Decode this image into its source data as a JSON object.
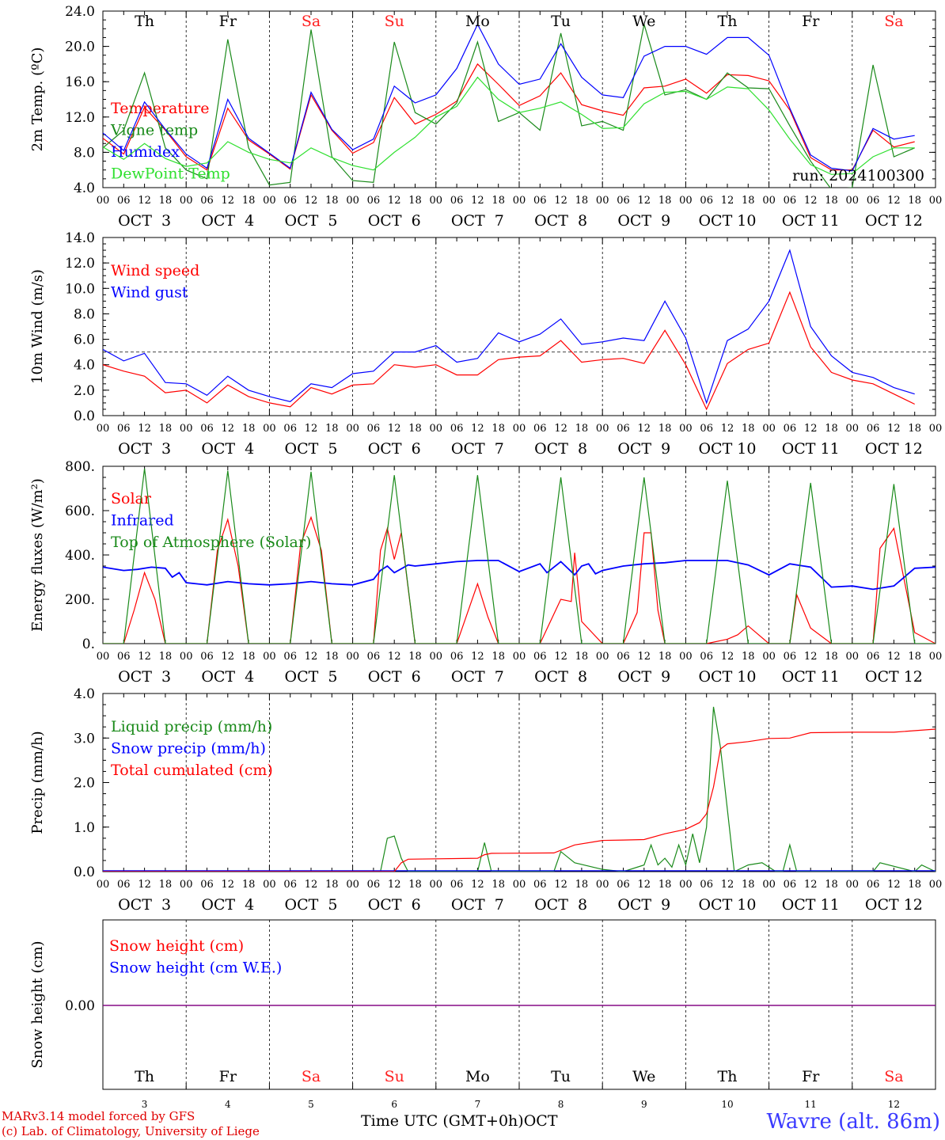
{
  "days": [
    "Th",
    "Fr",
    "Sa",
    "Su",
    "Mo",
    "Tu",
    "We",
    "Th",
    "Fr",
    "Sa"
  ],
  "weekend_days": [
    "Sa",
    "Su"
  ],
  "dates": [
    "OCT  3",
    "OCT  4",
    "OCT  5",
    "OCT  6",
    "OCT  7",
    "OCT  8",
    "OCT  9",
    "OCT 10",
    "OCT 11",
    "OCT 12"
  ],
  "hour_ticks": [
    "00",
    "06",
    "12",
    "18"
  ],
  "bottom_day_numbers": [
    "3",
    "4",
    "5",
    "6",
    "7",
    "8",
    "9",
    "10",
    "11",
    "12"
  ],
  "time_axis_label": "Time UTC (GMT+0h)",
  "month_label": "OCT",
  "credits": [
    "MARv3.14 model forced by GFS",
    "(c) Lab. of Climatology, University of Liege"
  ],
  "station": "Wavre (alt. 86m)",
  "run_label": "run: 2024100300",
  "colors": {
    "red": "#ff0000",
    "green": "#1a8a1a",
    "blue": "#0000ff",
    "lightgreen": "#30e030",
    "weekend": "#ff2020",
    "purple": "#800080"
  },
  "chart_data": [
    {
      "type": "line",
      "ylabel": "2m Temp. (ºC)",
      "ylim": [
        4,
        24
      ],
      "yticks": [
        "4.0",
        "8.0",
        "12.0",
        "16.0",
        "20.0",
        "24.0"
      ],
      "x_unit": "hours since OCT 3 00 UTC",
      "series": [
        {
          "name": "Temperature",
          "color": "red",
          "x": [
            0,
            6,
            12,
            18,
            24,
            30,
            36,
            42,
            48,
            54,
            60,
            66,
            72,
            78,
            84,
            90,
            96,
            102,
            108,
            114,
            120,
            126,
            132,
            138,
            144,
            150,
            156,
            162,
            168,
            174,
            180,
            186,
            192,
            198,
            204,
            210,
            216,
            222,
            228,
            234
          ],
          "y": [
            9.6,
            7.8,
            13.1,
            10.5,
            7.5,
            6.0,
            13.0,
            9.4,
            7.8,
            6.1,
            14.5,
            10.5,
            7.9,
            9.1,
            14.2,
            11.2,
            12.3,
            13.8,
            18.0,
            15.7,
            13.3,
            14.4,
            17.0,
            13.4,
            12.7,
            12.2,
            15.3,
            15.5,
            16.3,
            14.7,
            16.8,
            16.7,
            16.1,
            12.8,
            7.4,
            6.0,
            6.0,
            10.5,
            8.6,
            9.2
          ]
        },
        {
          "name": "Vigne temp",
          "color": "green",
          "x": [
            0,
            6,
            12,
            18,
            24,
            30,
            36,
            42,
            48,
            54,
            60,
            66,
            72,
            78,
            84,
            90,
            96,
            102,
            108,
            114,
            120,
            126,
            132,
            138,
            144,
            150,
            156,
            162,
            168,
            174,
            180,
            186,
            192,
            198,
            204,
            210,
            216,
            222,
            228,
            234
          ],
          "y": [
            8.5,
            10.5,
            17.0,
            8.5,
            6.0,
            5.0,
            20.8,
            8.5,
            4.3,
            4.6,
            21.9,
            7.5,
            4.8,
            4.6,
            20.5,
            12.5,
            11.2,
            13.6,
            20.5,
            11.5,
            12.5,
            10.5,
            21.5,
            11.0,
            11.5,
            10.5,
            22.5,
            14.5,
            15.1,
            14.0,
            17.0,
            15.3,
            15.2,
            11.0,
            7.0,
            3.8,
            4.0,
            17.9,
            7.5,
            8.5
          ]
        },
        {
          "name": "Humidex",
          "color": "blue",
          "x": [
            0,
            6,
            12,
            18,
            24,
            30,
            36,
            42,
            48,
            54,
            60,
            66,
            72,
            78,
            84,
            90,
            96,
            102,
            108,
            114,
            120,
            126,
            132,
            138,
            144,
            150,
            156,
            162,
            168,
            174,
            180,
            186,
            192,
            198,
            204,
            210,
            216,
            222,
            228,
            234
          ],
          "y": [
            10.2,
            8.2,
            13.7,
            10.6,
            7.8,
            6.2,
            14.0,
            9.6,
            7.9,
            6.2,
            14.8,
            10.6,
            8.3,
            9.5,
            15.5,
            13.6,
            14.5,
            17.5,
            22.5,
            18.0,
            15.7,
            16.3,
            20.3,
            16.5,
            14.5,
            14.2,
            18.9,
            20.0,
            20.0,
            19.1,
            21.0,
            21.0,
            19.0,
            13.0,
            7.7,
            6.2,
            5.9,
            10.7,
            9.5,
            9.9
          ]
        },
        {
          "name": "DewPoint Temp",
          "color": "lightgreen",
          "x": [
            0,
            6,
            12,
            18,
            24,
            30,
            36,
            42,
            48,
            54,
            60,
            66,
            72,
            78,
            84,
            90,
            96,
            102,
            108,
            114,
            120,
            126,
            132,
            138,
            144,
            150,
            156,
            162,
            168,
            174,
            180,
            186,
            192,
            198,
            204,
            210,
            216,
            222,
            228,
            234
          ],
          "y": [
            8.6,
            7.2,
            9.0,
            7.3,
            6.4,
            6.8,
            9.2,
            8.0,
            7.2,
            6.8,
            8.5,
            7.4,
            6.5,
            6.0,
            8.0,
            9.7,
            12.0,
            13.2,
            16.5,
            14.0,
            12.5,
            13.0,
            13.7,
            12.3,
            10.7,
            10.8,
            13.5,
            14.8,
            14.9,
            14.0,
            15.4,
            15.2,
            12.8,
            9.5,
            6.6,
            5.5,
            5.6,
            7.5,
            8.5,
            8.5
          ]
        }
      ]
    },
    {
      "type": "line",
      "ylabel": "10m Wind (m/s)",
      "ylim": [
        0,
        14
      ],
      "yticks": [
        "0.0",
        "2.0",
        "4.0",
        "6.0",
        "8.0",
        "10.0",
        "12.0",
        "14.0"
      ],
      "reference_line": 5.0,
      "series": [
        {
          "name": "Wind speed",
          "color": "red",
          "x": [
            0,
            6,
            12,
            18,
            24,
            30,
            36,
            42,
            48,
            54,
            60,
            66,
            72,
            78,
            84,
            90,
            96,
            102,
            108,
            114,
            120,
            126,
            132,
            138,
            144,
            150,
            156,
            162,
            168,
            174,
            180,
            186,
            192,
            198,
            204,
            210,
            216,
            222,
            228,
            234
          ],
          "y": [
            4.0,
            3.5,
            3.1,
            1.8,
            2.0,
            1.0,
            2.4,
            1.5,
            1.0,
            0.7,
            2.2,
            1.7,
            2.4,
            2.5,
            4.0,
            3.8,
            4.0,
            3.2,
            3.2,
            4.4,
            4.6,
            4.7,
            5.9,
            4.2,
            4.4,
            4.5,
            4.1,
            6.7,
            4.0,
            0.5,
            4.1,
            5.2,
            5.7,
            9.7,
            5.4,
            3.4,
            2.8,
            2.5,
            1.7,
            0.9
          ]
        },
        {
          "name": "Wind gust",
          "color": "blue",
          "x": [
            0,
            6,
            12,
            18,
            24,
            30,
            36,
            42,
            48,
            54,
            60,
            66,
            72,
            78,
            84,
            90,
            96,
            102,
            108,
            114,
            120,
            126,
            132,
            138,
            144,
            150,
            156,
            162,
            168,
            174,
            180,
            186,
            192,
            198,
            204,
            210,
            216,
            222,
            228,
            234
          ],
          "y": [
            5.2,
            4.3,
            4.9,
            2.6,
            2.5,
            1.6,
            3.1,
            2.0,
            1.5,
            1.1,
            2.5,
            2.2,
            3.3,
            3.5,
            5.0,
            5.0,
            5.5,
            4.2,
            4.5,
            6.5,
            5.8,
            6.4,
            7.6,
            5.6,
            5.8,
            6.1,
            5.9,
            9.0,
            6.1,
            1.0,
            5.9,
            6.8,
            9.0,
            13.0,
            7.0,
            4.7,
            3.4,
            3.0,
            2.2,
            1.7
          ]
        }
      ]
    },
    {
      "type": "line",
      "ylabel": "Energy fluxes (W/m²)",
      "ylim": [
        0,
        800
      ],
      "yticks": [
        "0.",
        "200.",
        "400.",
        "600.",
        "800."
      ],
      "series": [
        {
          "name": "Solar",
          "color": "red",
          "x": [
            0,
            6,
            9,
            12,
            15,
            18,
            24,
            30,
            33,
            36,
            39,
            42,
            48,
            54,
            57,
            60,
            63,
            66,
            72,
            78,
            80,
            82,
            84,
            86,
            88,
            90,
            96,
            102,
            104,
            108,
            111,
            114,
            120,
            126,
            132,
            135,
            136,
            138,
            144,
            150,
            154,
            156,
            158,
            160,
            162,
            168,
            174,
            180,
            183,
            186,
            192,
            198,
            200,
            204,
            210,
            216,
            222,
            224,
            228,
            234,
            240
          ],
          "y": [
            0,
            0,
            150,
            320,
            200,
            0,
            0,
            0,
            420,
            560,
            350,
            0,
            0,
            0,
            450,
            570,
            420,
            0,
            0,
            0,
            420,
            520,
            380,
            500,
            250,
            0,
            0,
            0,
            90,
            270,
            120,
            0,
            0,
            0,
            200,
            190,
            410,
            100,
            0,
            0,
            140,
            500,
            500,
            150,
            0,
            0,
            0,
            20,
            40,
            80,
            0,
            0,
            220,
            70,
            0,
            0,
            0,
            430,
            520,
            50,
            0
          ]
        },
        {
          "name": "Infrared",
          "color": "blue",
          "x": [
            0,
            6,
            10,
            14,
            18,
            20,
            22,
            24,
            30,
            36,
            42,
            48,
            54,
            60,
            66,
            72,
            78,
            80,
            82,
            84,
            88,
            90,
            96,
            102,
            108,
            114,
            120,
            126,
            128,
            132,
            136,
            138,
            140,
            142,
            144,
            150,
            156,
            162,
            168,
            174,
            180,
            186,
            192,
            198,
            204,
            210,
            216,
            222,
            228,
            234,
            240
          ],
          "y": [
            345,
            330,
            335,
            345,
            340,
            300,
            320,
            275,
            265,
            280,
            270,
            265,
            270,
            280,
            270,
            265,
            290,
            330,
            350,
            320,
            355,
            350,
            360,
            370,
            375,
            375,
            325,
            360,
            320,
            370,
            310,
            350,
            360,
            315,
            330,
            350,
            360,
            365,
            375,
            375,
            375,
            355,
            310,
            360,
            345,
            255,
            260,
            245,
            260,
            340,
            345
          ]
        },
        {
          "name": "Top of Atmosphere (Solar)",
          "color": "green",
          "x": [
            0,
            6,
            12,
            18,
            24,
            30,
            36,
            42,
            48,
            54,
            60,
            66,
            72,
            78,
            84,
            90,
            96,
            102,
            108,
            114,
            120,
            126,
            132,
            138,
            144,
            150,
            156,
            162,
            168,
            174,
            180,
            186,
            192,
            198,
            204,
            210,
            216,
            222,
            228,
            234,
            240
          ],
          "y": [
            0,
            0,
            790,
            0,
            0,
            0,
            780,
            0,
            0,
            0,
            775,
            0,
            0,
            0,
            760,
            0,
            0,
            0,
            760,
            0,
            0,
            0,
            750,
            0,
            0,
            0,
            750,
            0,
            0,
            0,
            735,
            0,
            0,
            0,
            725,
            0,
            0,
            0,
            720,
            0,
            0
          ]
        }
      ]
    },
    {
      "type": "line",
      "ylabel": "Precip (mm/h)",
      "ylim": [
        0,
        4
      ],
      "yticks": [
        "0.0",
        "1.0",
        "2.0",
        "3.0",
        "4.0"
      ],
      "series": [
        {
          "name": "Liquid precip (mm/h)",
          "color": "green",
          "x": [
            0,
            80,
            82,
            84,
            86,
            88,
            90,
            108,
            110,
            112,
            130,
            132,
            136,
            144,
            150,
            156,
            158,
            160,
            162,
            164,
            166,
            168,
            170,
            172,
            174,
            176,
            178,
            182,
            186,
            190,
            194,
            196,
            198,
            200,
            220,
            222,
            224,
            234,
            236,
            240
          ],
          "y": [
            0,
            0,
            0.75,
            0.8,
            0.3,
            0,
            0,
            0,
            0.65,
            0,
            0,
            0.45,
            0.2,
            0.05,
            0,
            0.15,
            0.6,
            0.15,
            0.3,
            0.1,
            0.6,
            0.15,
            0.85,
            0.2,
            1.0,
            3.7,
            2.8,
            0,
            0.15,
            0.2,
            0,
            0,
            0.6,
            0,
            0,
            0,
            0.2,
            0,
            0.15,
            0
          ]
        },
        {
          "name": "Snow precip (mm/h)",
          "color": "blue",
          "x": [
            0,
            240
          ],
          "y": [
            0.02,
            0.02
          ]
        },
        {
          "name": "Total cumulated (cm)",
          "color": "red",
          "x": [
            0,
            84,
            86,
            88,
            108,
            110,
            112,
            130,
            136,
            144,
            150,
            156,
            162,
            168,
            172,
            174,
            176,
            178,
            180,
            186,
            192,
            198,
            204,
            216,
            228,
            240
          ],
          "y": [
            0,
            0,
            0.2,
            0.28,
            0.3,
            0.38,
            0.41,
            0.42,
            0.6,
            0.7,
            0.71,
            0.72,
            0.85,
            0.95,
            1.1,
            1.3,
            1.9,
            2.75,
            2.87,
            2.92,
            2.99,
            3.0,
            3.12,
            3.13,
            3.13,
            3.2
          ]
        }
      ]
    },
    {
      "type": "line",
      "ylabel": "Snow height (cm)",
      "yticks": [
        "0.00"
      ],
      "series": [
        {
          "name": "Snow height (cm)",
          "color": "red",
          "x": [
            0,
            240
          ],
          "y": [
            0,
            0
          ]
        },
        {
          "name": "Snow height (cm W.E.)",
          "color": "blue",
          "x": [
            0,
            240
          ],
          "y": [
            0,
            0
          ]
        }
      ]
    }
  ]
}
